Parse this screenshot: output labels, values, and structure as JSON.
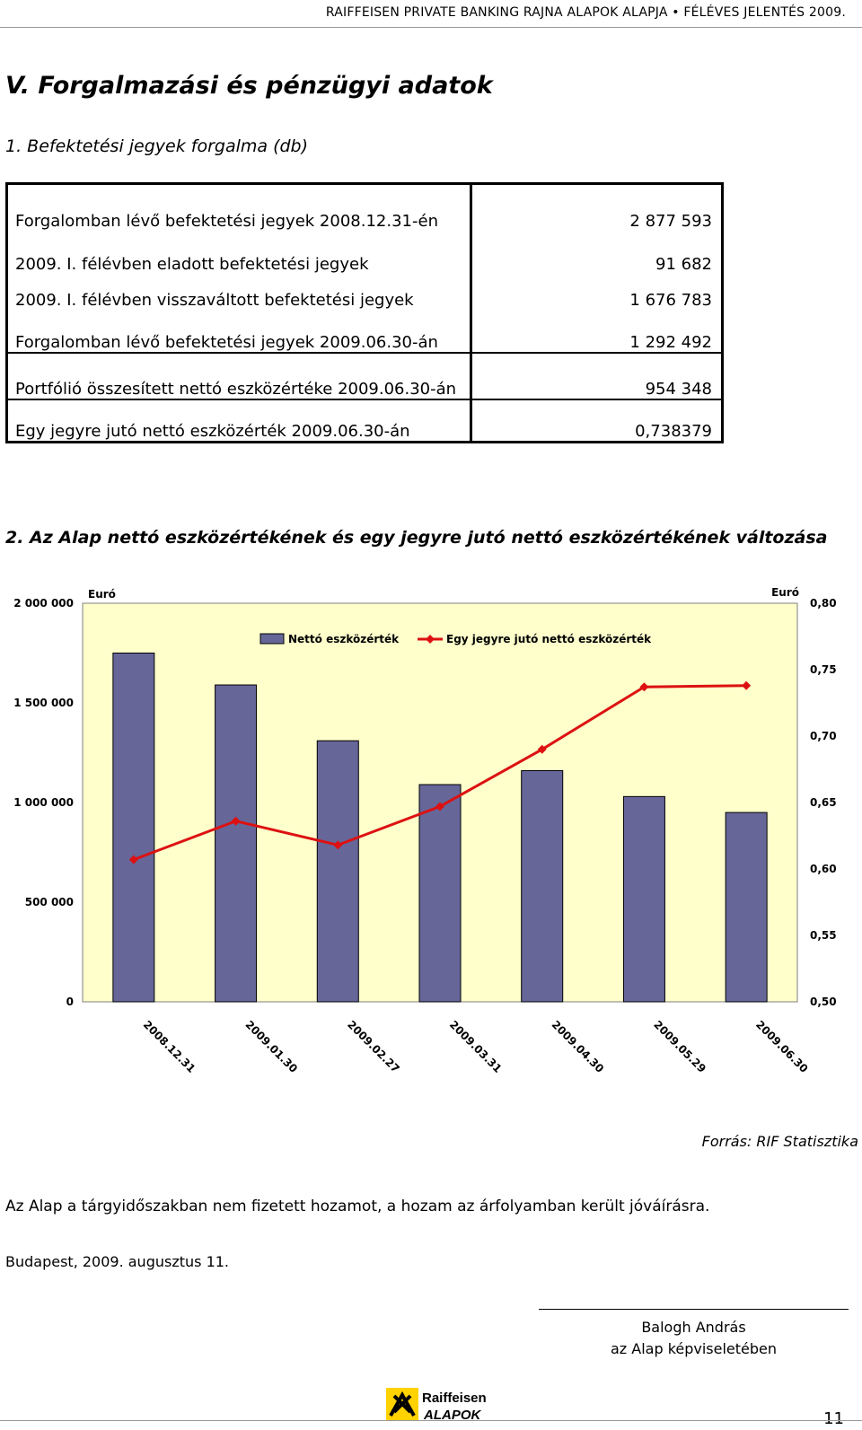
{
  "header": {
    "text": "RAIFFEISEN PRIVATE BANKING RAJNA ALAPOK ALAPJA • FÉLÉVES JELENTÉS 2009."
  },
  "section_title": "V. Forgalmazási és pénzügyi adatok",
  "subsection1_title": "1.   Befektetési jegyek forgalma (db)",
  "table": {
    "rows": [
      {
        "label": "Forgalomban lévő befektetési jegyek 2008.12.31-én",
        "value": "2 877 593"
      },
      {
        "label": "2009. I. félévben eladott befektetési jegyek",
        "value": "91 682"
      },
      {
        "label": "2009. I. félévben visszaváltott befektetési jegyek",
        "value": "1 676 783"
      },
      {
        "label": "Forgalomban lévő befektetési jegyek 2009.06.30-án",
        "value": "1 292 492"
      },
      {
        "label": "Portfólió összesített nettó eszközértéke 2009.06.30-án",
        "value": "954 348"
      },
      {
        "label": "Egy jegyre jutó nettó eszközérték 2009.06.30-án",
        "value": "0,738379"
      }
    ]
  },
  "subsection2_title": "2. Az Alap nettó eszközértékének és egy jegyre jutó nettó eszközértékének változása",
  "chart_data": {
    "type": "bar",
    "categories": [
      "2008.12.31",
      "2009.01.30",
      "2009.02.27",
      "2009.03.31",
      "2009.04.30",
      "2009.05.29",
      "2009.06.30"
    ],
    "series": [
      {
        "name": "Nettó eszközérték",
        "type": "bar",
        "axis": "left",
        "color": "#666699",
        "values": [
          1750000,
          1590000,
          1310000,
          1090000,
          1160000,
          1030000,
          950000
        ]
      },
      {
        "name": "Egy jegyre jutó nettó eszközérték",
        "type": "line",
        "axis": "right",
        "color": "#dd1111",
        "values": [
          0.607,
          0.636,
          0.618,
          0.647,
          0.69,
          0.737,
          0.738
        ]
      }
    ],
    "left_axis": {
      "label": "Euró",
      "min": 0,
      "max": 2000000,
      "ticks": [
        "0",
        "500 000",
        "1 000 000",
        "1 500 000",
        "2 000 000"
      ]
    },
    "right_axis": {
      "label": "Euró",
      "min": 0.5,
      "max": 0.8,
      "ticks": [
        "0,50",
        "0,55",
        "0,60",
        "0,65",
        "0,70",
        "0,75",
        "0,80"
      ]
    },
    "legend_position": "top",
    "plot_background": "#ffffcc",
    "grid": false
  },
  "source": "Forrás: RIF Statisztika",
  "paragraph": "Az Alap a tárgyidőszakban nem fizetett hozamot, a hozam az árfolyamban került jóváírásra.",
  "place_date": "Budapest, 2009. augusztus 11.",
  "signature": {
    "name": "Balogh András",
    "role": "az Alap képviseletében"
  },
  "logo": {
    "line1": "Raiffeisen",
    "line2": "ALAPOK",
    "icon": "raiffeisen-gable-cross-icon"
  },
  "page_number": "11"
}
